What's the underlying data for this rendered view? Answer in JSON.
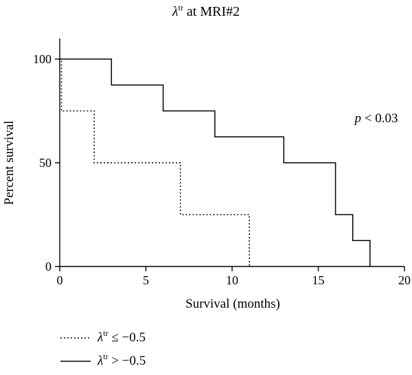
{
  "chart_data": {
    "type": "line",
    "title": {
      "symbol": "λ",
      "sup": "tr",
      "rest": " at MRI#2"
    },
    "xlabel": "Survival (months)",
    "ylabel": "Percent survival",
    "xlim": [
      0,
      20
    ],
    "ylim": [
      0,
      100
    ],
    "xticks": [
      0,
      5,
      10,
      15,
      20
    ],
    "yticks": [
      0,
      50,
      100
    ],
    "annotation": {
      "prefix": "p",
      "text": " < 0.03"
    },
    "grid": false,
    "legend_position": "bottom-left",
    "series": [
      {
        "name": {
          "symbol": "λ",
          "sup": "tr",
          "rest": " ≤ −0.5"
        },
        "style": "dotted",
        "color": "#000000",
        "x": [
          0,
          0.1,
          0.1,
          2,
          2,
          7,
          7,
          11,
          11
        ],
        "y": [
          100,
          100,
          75,
          75,
          50,
          50,
          25,
          25,
          0
        ]
      },
      {
        "name": {
          "symbol": "λ",
          "sup": "tr",
          "rest": " > −0.5"
        },
        "style": "solid",
        "color": "#000000",
        "x": [
          0,
          3,
          3,
          6,
          6,
          9,
          9,
          13,
          13,
          16,
          16,
          17,
          17,
          18,
          18
        ],
        "y": [
          100,
          100,
          87.5,
          87.5,
          75,
          75,
          62.5,
          62.5,
          50,
          50,
          25,
          25,
          12.5,
          12.5,
          0
        ]
      }
    ]
  }
}
